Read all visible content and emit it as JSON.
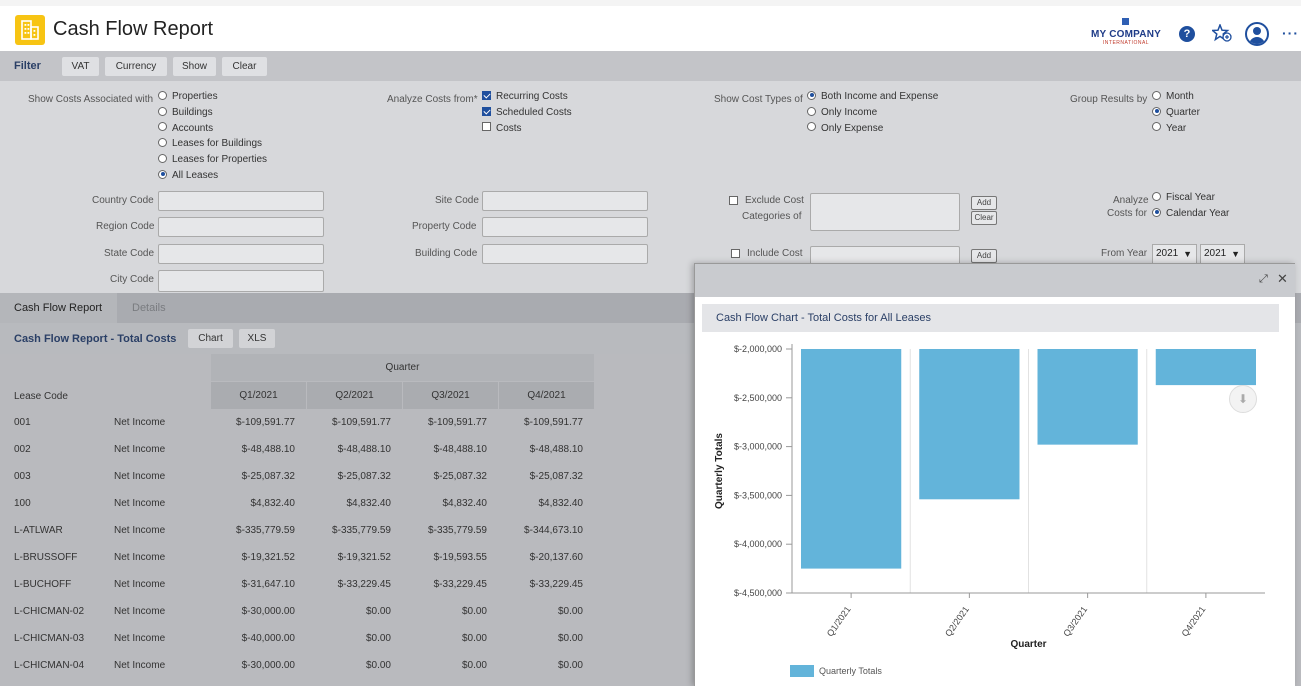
{
  "header": {
    "title": "Cash Flow Report",
    "company_name": "MY COMPANY",
    "company_sub": "INTERNATIONAL",
    "help_glyph": "?",
    "more_glyph": "···"
  },
  "filter_bar": {
    "label": "Filter",
    "buttons": [
      "VAT",
      "Currency",
      "Show",
      "Clear"
    ]
  },
  "filters": {
    "show_costs_label": "Show Costs Associated with",
    "show_costs_options": [
      {
        "label": "Properties",
        "selected": false
      },
      {
        "label": "Buildings",
        "selected": false
      },
      {
        "label": "Accounts",
        "selected": false
      },
      {
        "label": "Leases for Buildings",
        "selected": false
      },
      {
        "label": "Leases for Properties",
        "selected": false
      },
      {
        "label": "All Leases",
        "selected": true
      }
    ],
    "analyze_from_label": "Analyze Costs from*",
    "analyze_from_options": [
      {
        "label": "Recurring Costs",
        "checked": true
      },
      {
        "label": "Scheduled Costs",
        "checked": true
      },
      {
        "label": "Costs",
        "checked": false
      }
    ],
    "cost_types_label": "Show Cost Types of",
    "cost_types_options": [
      {
        "label": "Both Income and Expense",
        "selected": true
      },
      {
        "label": "Only Income",
        "selected": false
      },
      {
        "label": "Only Expense",
        "selected": false
      }
    ],
    "group_by_label": "Group Results by",
    "group_by_options": [
      {
        "label": "Month",
        "selected": false
      },
      {
        "label": "Quarter",
        "selected": true
      },
      {
        "label": "Year",
        "selected": false
      }
    ],
    "country_code": "Country Code",
    "region_code": "Region Code",
    "state_code": "State Code",
    "city_code": "City Code",
    "site_code": "Site Code",
    "property_code": "Property Code",
    "building_code": "Building Code",
    "exclude_cost_label_1": "Exclude Cost",
    "exclude_cost_label_2": "Categories of",
    "include_cost_label": "Include Cost",
    "add_label": "Add",
    "clear_label": "Clear",
    "analyze_costs_label_1": "Analyze",
    "analyze_costs_label_2": "Costs for",
    "fiscal_year": "Fiscal Year",
    "calendar_year": "Calendar Year",
    "fiscal_selected": false,
    "calendar_selected": true,
    "from_year_label": "From Year",
    "from_year_value": "2021",
    "to_year_value": "2021"
  },
  "tabs": [
    {
      "label": "Cash Flow Report",
      "active": true
    },
    {
      "label": "Details",
      "active": false
    }
  ],
  "report": {
    "title": "Cash Flow Report - Total Costs",
    "chart_button": "Chart",
    "xls_button": "XLS",
    "group_header": "Quarter",
    "lease_code_header": "Lease Code",
    "quarter_headers": [
      "Q1/2021",
      "Q2/2021",
      "Q3/2021",
      "Q4/2021"
    ],
    "rows": [
      {
        "code": "001",
        "type": "Net Income",
        "values": [
          "$-109,591.77",
          "$-109,591.77",
          "$-109,591.77",
          "$-109,591.77"
        ]
      },
      {
        "code": "002",
        "type": "Net Income",
        "values": [
          "$-48,488.10",
          "$-48,488.10",
          "$-48,488.10",
          "$-48,488.10"
        ]
      },
      {
        "code": "003",
        "type": "Net Income",
        "values": [
          "$-25,087.32",
          "$-25,087.32",
          "$-25,087.32",
          "$-25,087.32"
        ]
      },
      {
        "code": "100",
        "type": "Net Income",
        "values": [
          "$4,832.40",
          "$4,832.40",
          "$4,832.40",
          "$4,832.40"
        ]
      },
      {
        "code": "L-ATLWAR",
        "type": "Net Income",
        "values": [
          "$-335,779.59",
          "$-335,779.59",
          "$-335,779.59",
          "$-344,673.10"
        ]
      },
      {
        "code": "L-BRUSSOFF",
        "type": "Net Income",
        "values": [
          "$-19,321.52",
          "$-19,321.52",
          "$-19,593.55",
          "$-20,137.60"
        ]
      },
      {
        "code": "L-BUCHOFF",
        "type": "Net Income",
        "values": [
          "$-31,647.10",
          "$-33,229.45",
          "$-33,229.45",
          "$-33,229.45"
        ]
      },
      {
        "code": "L-CHICMAN-02",
        "type": "Net Income",
        "values": [
          "$-30,000.00",
          "$0.00",
          "$0.00",
          "$0.00"
        ]
      },
      {
        "code": "L-CHICMAN-03",
        "type": "Net Income",
        "values": [
          "$-40,000.00",
          "$0.00",
          "$0.00",
          "$0.00"
        ]
      },
      {
        "code": "L-CHICMAN-04",
        "type": "Net Income",
        "values": [
          "$-30,000.00",
          "$0.00",
          "$0.00",
          "$0.00"
        ]
      }
    ]
  },
  "popup": {
    "title": "Cash Flow Chart - Total Costs for All Leases",
    "expand_glyph": "⤢",
    "close_glyph": "✕",
    "download_glyph": "⬇"
  },
  "chart_data": {
    "type": "bar",
    "title": "Cash Flow Chart - Total Costs for All Leases",
    "xlabel": "Quarter",
    "ylabel": "Quarterly Totals",
    "categories": [
      "Q1/2021",
      "Q2/2021",
      "Q3/2021",
      "Q4/2021"
    ],
    "series": [
      {
        "name": "Quarterly Totals",
        "values": [
          -4250000,
          -3540000,
          -2980000,
          -2370000
        ],
        "color": "#63b4da"
      }
    ],
    "ylim": [
      -4500000,
      -2000000
    ],
    "yticks": [
      -2000000,
      -2500000,
      -3000000,
      -3500000,
      -4000000,
      -4500000
    ],
    "ytick_labels": [
      "$-2,000,000",
      "$-2,500,000",
      "$-3,000,000",
      "$-3,500,000",
      "$-4,000,000",
      "$-4,500,000"
    ],
    "grid": true,
    "legend": "bottom-left"
  }
}
